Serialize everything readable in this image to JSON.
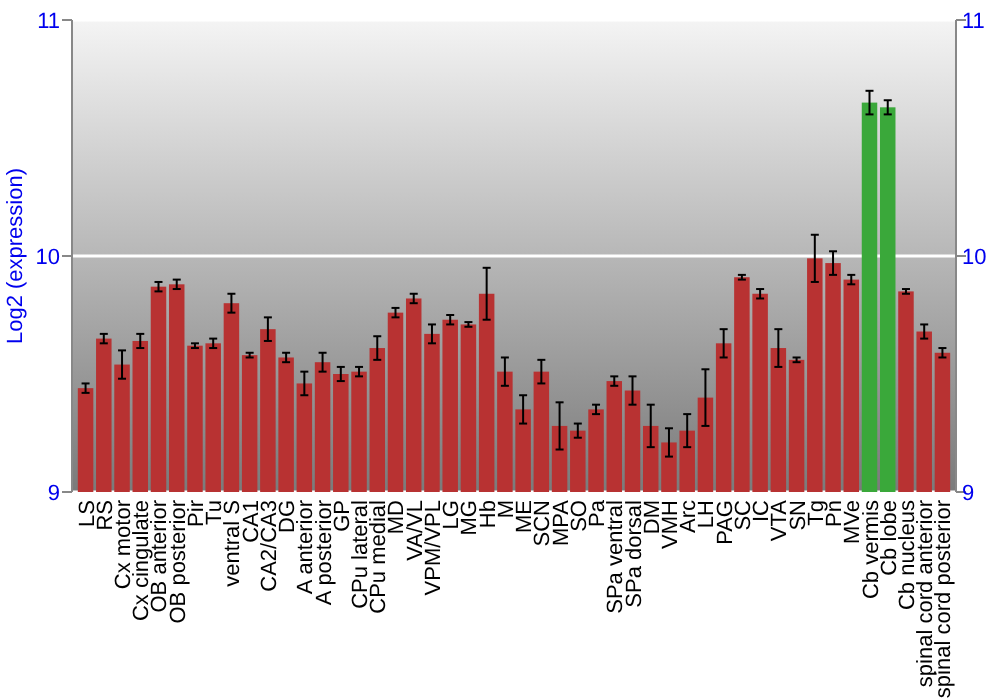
{
  "chart_data": {
    "type": "bar",
    "ylabel": "Log2 (expression)",
    "categories": [
      "LS",
      "RS",
      "Cx motor",
      "Cx cingulate",
      "OB anterior",
      "OB posterior",
      "Pir",
      "Tu",
      "ventral S",
      "CA1",
      "CA2/CA3",
      "DG",
      "A anterior",
      "A posterior",
      "GP",
      "CPu lateral",
      "CPu medial",
      "MD",
      "VA/VL",
      "VPM/VPL",
      "LG",
      "MG",
      "Hb",
      "M",
      "ME",
      "SCN",
      "MPA",
      "SO",
      "Pa",
      "SPa ventral",
      "SPa dorsal",
      "DM",
      "VMH",
      "Arc",
      "LH",
      "PAG",
      "SC",
      "IC",
      "VTA",
      "SN",
      "Tg",
      "Pn",
      "MVe",
      "Cb vermis",
      "Cb lobe",
      "Cb nucleus",
      "spinal cord anterior",
      "spinal cord posterior"
    ],
    "values": [
      9.44,
      9.65,
      9.54,
      9.64,
      9.87,
      9.88,
      9.62,
      9.63,
      9.8,
      9.58,
      9.69,
      9.57,
      9.46,
      9.55,
      9.5,
      9.51,
      9.61,
      9.76,
      9.82,
      9.67,
      9.73,
      9.71,
      9.84,
      9.51,
      9.35,
      9.51,
      9.28,
      9.26,
      9.35,
      9.47,
      9.43,
      9.28,
      9.21,
      9.26,
      9.4,
      9.63,
      9.91,
      9.84,
      9.61,
      9.56,
      9.99,
      9.97,
      9.9,
      10.65,
      10.63,
      9.85,
      9.68,
      9.59
    ],
    "errors": [
      0.02,
      0.02,
      0.06,
      0.03,
      0.02,
      0.02,
      0.01,
      0.02,
      0.04,
      0.01,
      0.05,
      0.02,
      0.05,
      0.04,
      0.03,
      0.02,
      0.05,
      0.02,
      0.02,
      0.04,
      0.02,
      0.01,
      0.11,
      0.06,
      0.06,
      0.05,
      0.1,
      0.03,
      0.02,
      0.02,
      0.06,
      0.09,
      0.06,
      0.07,
      0.12,
      0.06,
      0.01,
      0.02,
      0.08,
      0.01,
      0.1,
      0.05,
      0.02,
      0.05,
      0.03,
      0.01,
      0.03,
      0.02
    ],
    "colors": [
      "#b83232",
      "#b83232",
      "#b83232",
      "#b83232",
      "#b83232",
      "#b83232",
      "#b83232",
      "#b83232",
      "#b83232",
      "#b83232",
      "#b83232",
      "#b83232",
      "#b83232",
      "#b83232",
      "#b83232",
      "#b83232",
      "#b83232",
      "#b83232",
      "#b83232",
      "#b83232",
      "#b83232",
      "#b83232",
      "#b83232",
      "#b83232",
      "#b83232",
      "#b83232",
      "#b83232",
      "#b83232",
      "#b83232",
      "#b83232",
      "#b83232",
      "#b83232",
      "#b83232",
      "#b83232",
      "#b83232",
      "#b83232",
      "#b83232",
      "#b83232",
      "#b83232",
      "#b83232",
      "#b83232",
      "#b83232",
      "#b83232",
      "#3aa83a",
      "#3aa83a",
      "#b83232",
      "#b83232",
      "#b83232"
    ],
    "ylim": [
      9,
      11
    ],
    "yticks": [
      9,
      10,
      11
    ],
    "y2lim": [
      9,
      11
    ],
    "y2ticks": [
      9,
      10,
      11
    ],
    "grid": "y"
  }
}
